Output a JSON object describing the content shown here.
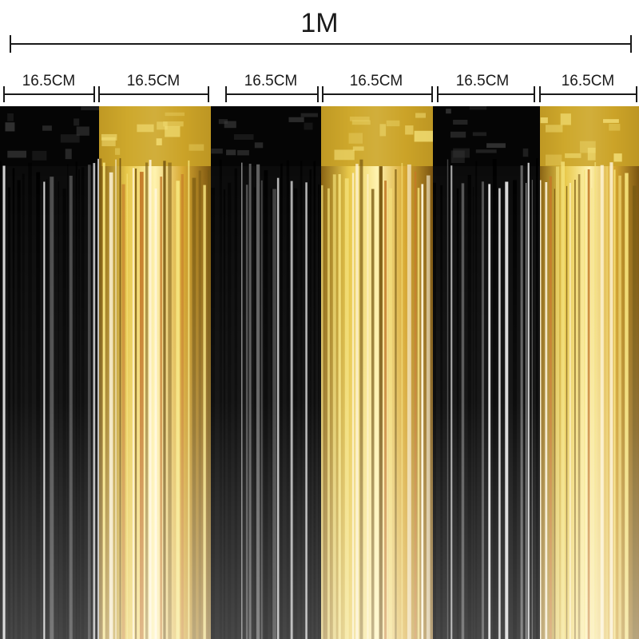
{
  "overall_width": {
    "label": "1M"
  },
  "panel_width": {
    "label": "16.5CM"
  },
  "colors": {
    "black": "#0b0b0b",
    "gold": "#c9a227",
    "gold_highlight": "#f5e27a",
    "gold_dark": "#7a5a12",
    "background": "#ffffff",
    "dimension_line": "#1a1a1a"
  },
  "panels": [
    {
      "color": "black",
      "label": "16.5CM"
    },
    {
      "color": "gold",
      "label": "16.5CM"
    },
    {
      "color": "black",
      "label": "16.5CM"
    },
    {
      "color": "gold",
      "label": "16.5CM"
    },
    {
      "color": "black",
      "label": "16.5CM"
    },
    {
      "color": "gold",
      "label": "16.5CM"
    }
  ]
}
